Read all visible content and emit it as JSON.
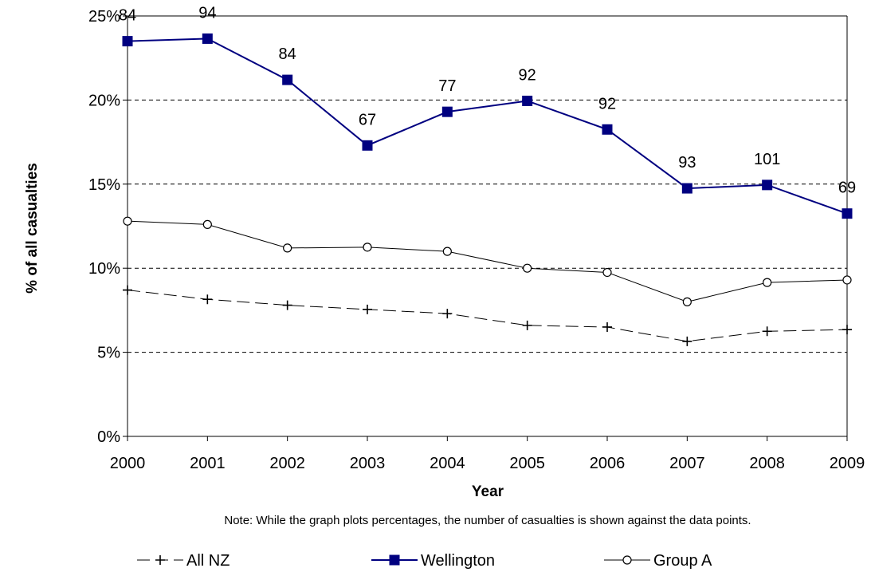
{
  "chart_data": {
    "type": "line",
    "x": [
      "2000",
      "2001",
      "2002",
      "2003",
      "2004",
      "2005",
      "2006",
      "2007",
      "2008",
      "2009"
    ],
    "xlabel": "Year",
    "ylabel": "% of all casualties",
    "ylim": [
      0,
      25
    ],
    "yticks": [
      "0%",
      "5%",
      "10%",
      "15%",
      "20%",
      "25%"
    ],
    "grid": "horizontal dashed",
    "legend_position": "bottom",
    "note": "Note: While the graph plots percentages, the number of casualties is shown against the data points.",
    "series": [
      {
        "name": "All NZ",
        "values": [
          8.7,
          8.15,
          7.8,
          7.55,
          7.3,
          6.6,
          6.5,
          5.65,
          6.25,
          6.35
        ],
        "color": "#000000",
        "marker": "plus",
        "dash": true
      },
      {
        "name": "Wellington",
        "values": [
          23.5,
          23.65,
          21.2,
          17.3,
          19.3,
          19.95,
          18.25,
          14.75,
          14.95,
          13.25
        ],
        "data_labels": [
          "84",
          "94",
          "84",
          "67",
          "77",
          "92",
          "92",
          "93",
          "101",
          "69"
        ],
        "color": "#000080",
        "marker": "square",
        "dash": false
      },
      {
        "name": "Group A",
        "values": [
          12.8,
          12.6,
          11.2,
          11.25,
          11.0,
          10.0,
          9.75,
          8.0,
          9.15,
          9.3
        ],
        "color": "#000000",
        "marker": "circle",
        "dash": false
      }
    ]
  }
}
